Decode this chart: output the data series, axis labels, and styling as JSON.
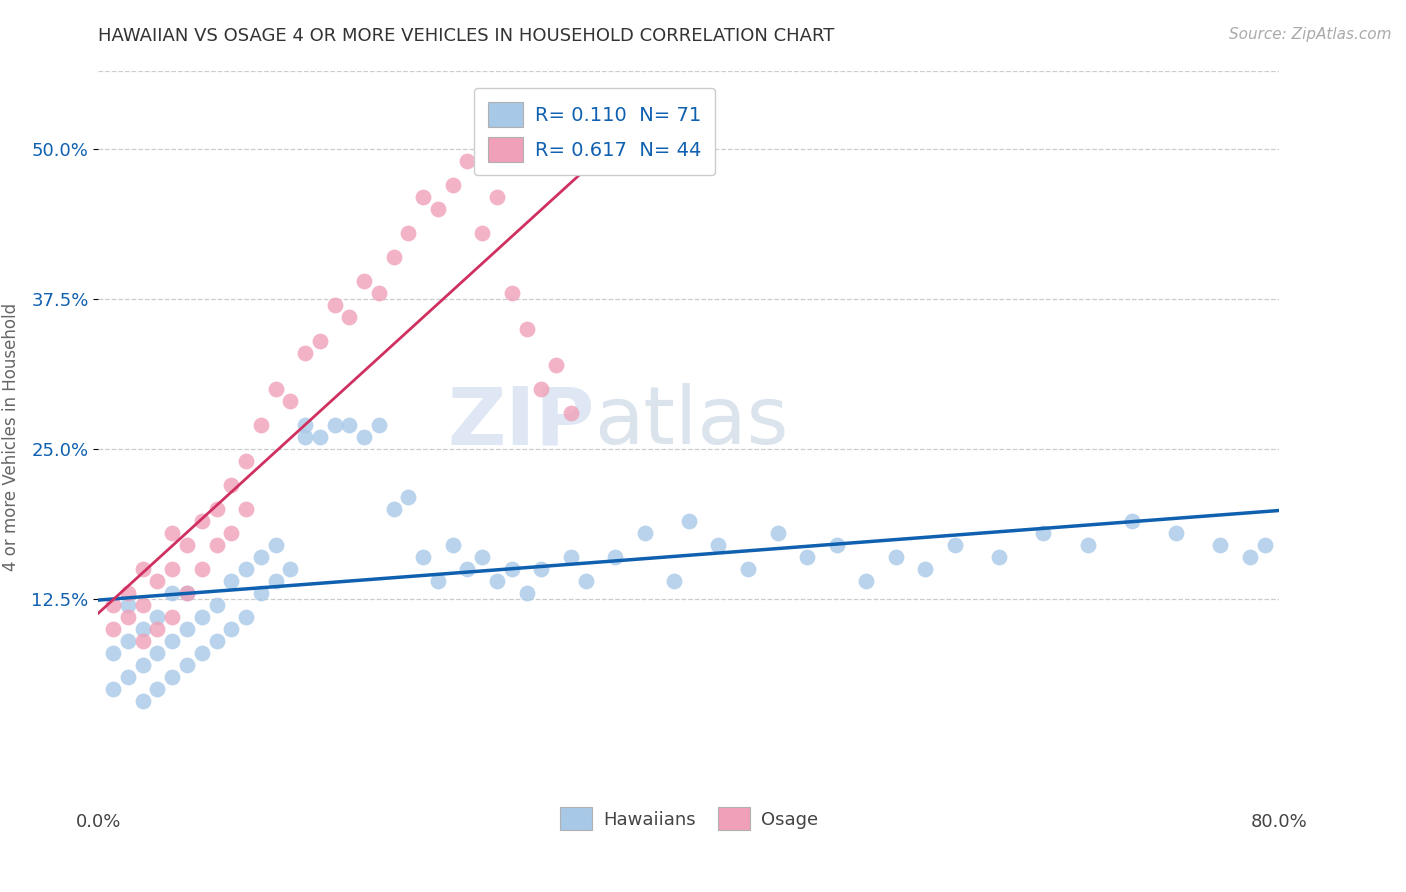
{
  "title": "HAWAIIAN VS OSAGE 4 OR MORE VEHICLES IN HOUSEHOLD CORRELATION CHART",
  "source": "Source: ZipAtlas.com",
  "ylabel": "4 or more Vehicles in Household",
  "xlim": [
    0.0,
    0.8
  ],
  "ylim": [
    -0.045,
    0.565
  ],
  "hawaiian_color": "#a8c8e8",
  "osage_color": "#f0a0b8",
  "hawaiian_line_color": "#1060b0",
  "osage_line_color": "#d03060",
  "legend_R_hawaiian": "0.110",
  "legend_N_hawaiian": "71",
  "legend_R_osage": "0.617",
  "legend_N_osage": "44",
  "watermark_zip": "ZIP",
  "watermark_atlas": "atlas",
  "background_color": "#ffffff",
  "hawaiian_x": [
    0.01,
    0.01,
    0.02,
    0.02,
    0.02,
    0.03,
    0.03,
    0.03,
    0.04,
    0.04,
    0.04,
    0.05,
    0.05,
    0.05,
    0.06,
    0.06,
    0.06,
    0.07,
    0.07,
    0.08,
    0.08,
    0.09,
    0.09,
    0.1,
    0.1,
    0.11,
    0.11,
    0.12,
    0.12,
    0.13,
    0.14,
    0.14,
    0.15,
    0.16,
    0.17,
    0.18,
    0.19,
    0.2,
    0.21,
    0.22,
    0.23,
    0.24,
    0.25,
    0.26,
    0.27,
    0.28,
    0.29,
    0.3,
    0.32,
    0.33,
    0.35,
    0.37,
    0.39,
    0.4,
    0.42,
    0.44,
    0.46,
    0.48,
    0.5,
    0.52,
    0.54,
    0.56,
    0.58,
    0.61,
    0.64,
    0.67,
    0.7,
    0.73,
    0.76,
    0.78,
    0.79
  ],
  "hawaiian_y": [
    0.05,
    0.08,
    0.06,
    0.09,
    0.12,
    0.04,
    0.07,
    0.1,
    0.05,
    0.08,
    0.11,
    0.06,
    0.09,
    0.13,
    0.07,
    0.1,
    0.13,
    0.08,
    0.11,
    0.09,
    0.12,
    0.1,
    0.14,
    0.11,
    0.15,
    0.13,
    0.16,
    0.14,
    0.17,
    0.15,
    0.26,
    0.27,
    0.26,
    0.27,
    0.27,
    0.26,
    0.27,
    0.2,
    0.21,
    0.16,
    0.14,
    0.17,
    0.15,
    0.16,
    0.14,
    0.15,
    0.13,
    0.15,
    0.16,
    0.14,
    0.16,
    0.18,
    0.14,
    0.19,
    0.17,
    0.15,
    0.18,
    0.16,
    0.17,
    0.14,
    0.16,
    0.15,
    0.17,
    0.16,
    0.18,
    0.17,
    0.19,
    0.18,
    0.17,
    0.16,
    0.17
  ],
  "osage_x": [
    0.01,
    0.01,
    0.02,
    0.02,
    0.03,
    0.03,
    0.03,
    0.04,
    0.04,
    0.05,
    0.05,
    0.05,
    0.06,
    0.06,
    0.07,
    0.07,
    0.08,
    0.08,
    0.09,
    0.09,
    0.1,
    0.1,
    0.11,
    0.12,
    0.13,
    0.14,
    0.15,
    0.16,
    0.17,
    0.18,
    0.19,
    0.2,
    0.21,
    0.22,
    0.23,
    0.24,
    0.25,
    0.26,
    0.27,
    0.28,
    0.29,
    0.3,
    0.31,
    0.32
  ],
  "osage_y": [
    0.1,
    0.12,
    0.11,
    0.13,
    0.09,
    0.12,
    0.15,
    0.1,
    0.14,
    0.11,
    0.15,
    0.18,
    0.13,
    0.17,
    0.15,
    0.19,
    0.17,
    0.2,
    0.18,
    0.22,
    0.24,
    0.2,
    0.27,
    0.3,
    0.29,
    0.33,
    0.34,
    0.37,
    0.36,
    0.39,
    0.38,
    0.41,
    0.43,
    0.46,
    0.45,
    0.47,
    0.49,
    0.43,
    0.46,
    0.38,
    0.35,
    0.3,
    0.32,
    0.28
  ]
}
